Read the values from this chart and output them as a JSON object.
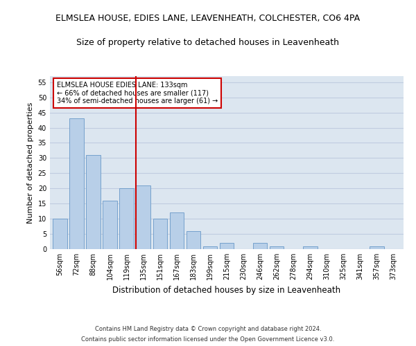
{
  "title1": "ELMSLEA HOUSE, EDIES LANE, LEAVENHEATH, COLCHESTER, CO6 4PA",
  "title2": "Size of property relative to detached houses in Leavenheath",
  "xlabel": "Distribution of detached houses by size in Leavenheath",
  "ylabel": "Number of detached properties",
  "footnote1": "Contains HM Land Registry data © Crown copyright and database right 2024.",
  "footnote2": "Contains public sector information licensed under the Open Government Licence v3.0.",
  "annotation_title": "ELMSLEA HOUSE EDIES LANE: 133sqm",
  "annotation_line1": "← 66% of detached houses are smaller (117)",
  "annotation_line2": "34% of semi-detached houses are larger (61) →",
  "categories": [
    "56sqm",
    "72sqm",
    "88sqm",
    "104sqm",
    "119sqm",
    "135sqm",
    "151sqm",
    "167sqm",
    "183sqm",
    "199sqm",
    "215sqm",
    "230sqm",
    "246sqm",
    "262sqm",
    "278sqm",
    "294sqm",
    "310sqm",
    "325sqm",
    "341sqm",
    "357sqm",
    "373sqm"
  ],
  "values": [
    10,
    43,
    31,
    16,
    20,
    21,
    10,
    12,
    6,
    1,
    2,
    0,
    2,
    1,
    0,
    1,
    0,
    0,
    0,
    1,
    0
  ],
  "bar_color": "#b8cfe8",
  "bar_edge_color": "#6898c8",
  "vline_color": "#cc0000",
  "annotation_box_color": "#cc0000",
  "ylim": [
    0,
    57
  ],
  "yticks": [
    0,
    5,
    10,
    15,
    20,
    25,
    30,
    35,
    40,
    45,
    50,
    55
  ],
  "grid_color": "#c0cce0",
  "background_color": "#dce6f0",
  "title1_fontsize": 9,
  "title2_fontsize": 9,
  "tick_fontsize": 7,
  "ylabel_fontsize": 8,
  "xlabel_fontsize": 8.5,
  "footnote_fontsize": 6
}
